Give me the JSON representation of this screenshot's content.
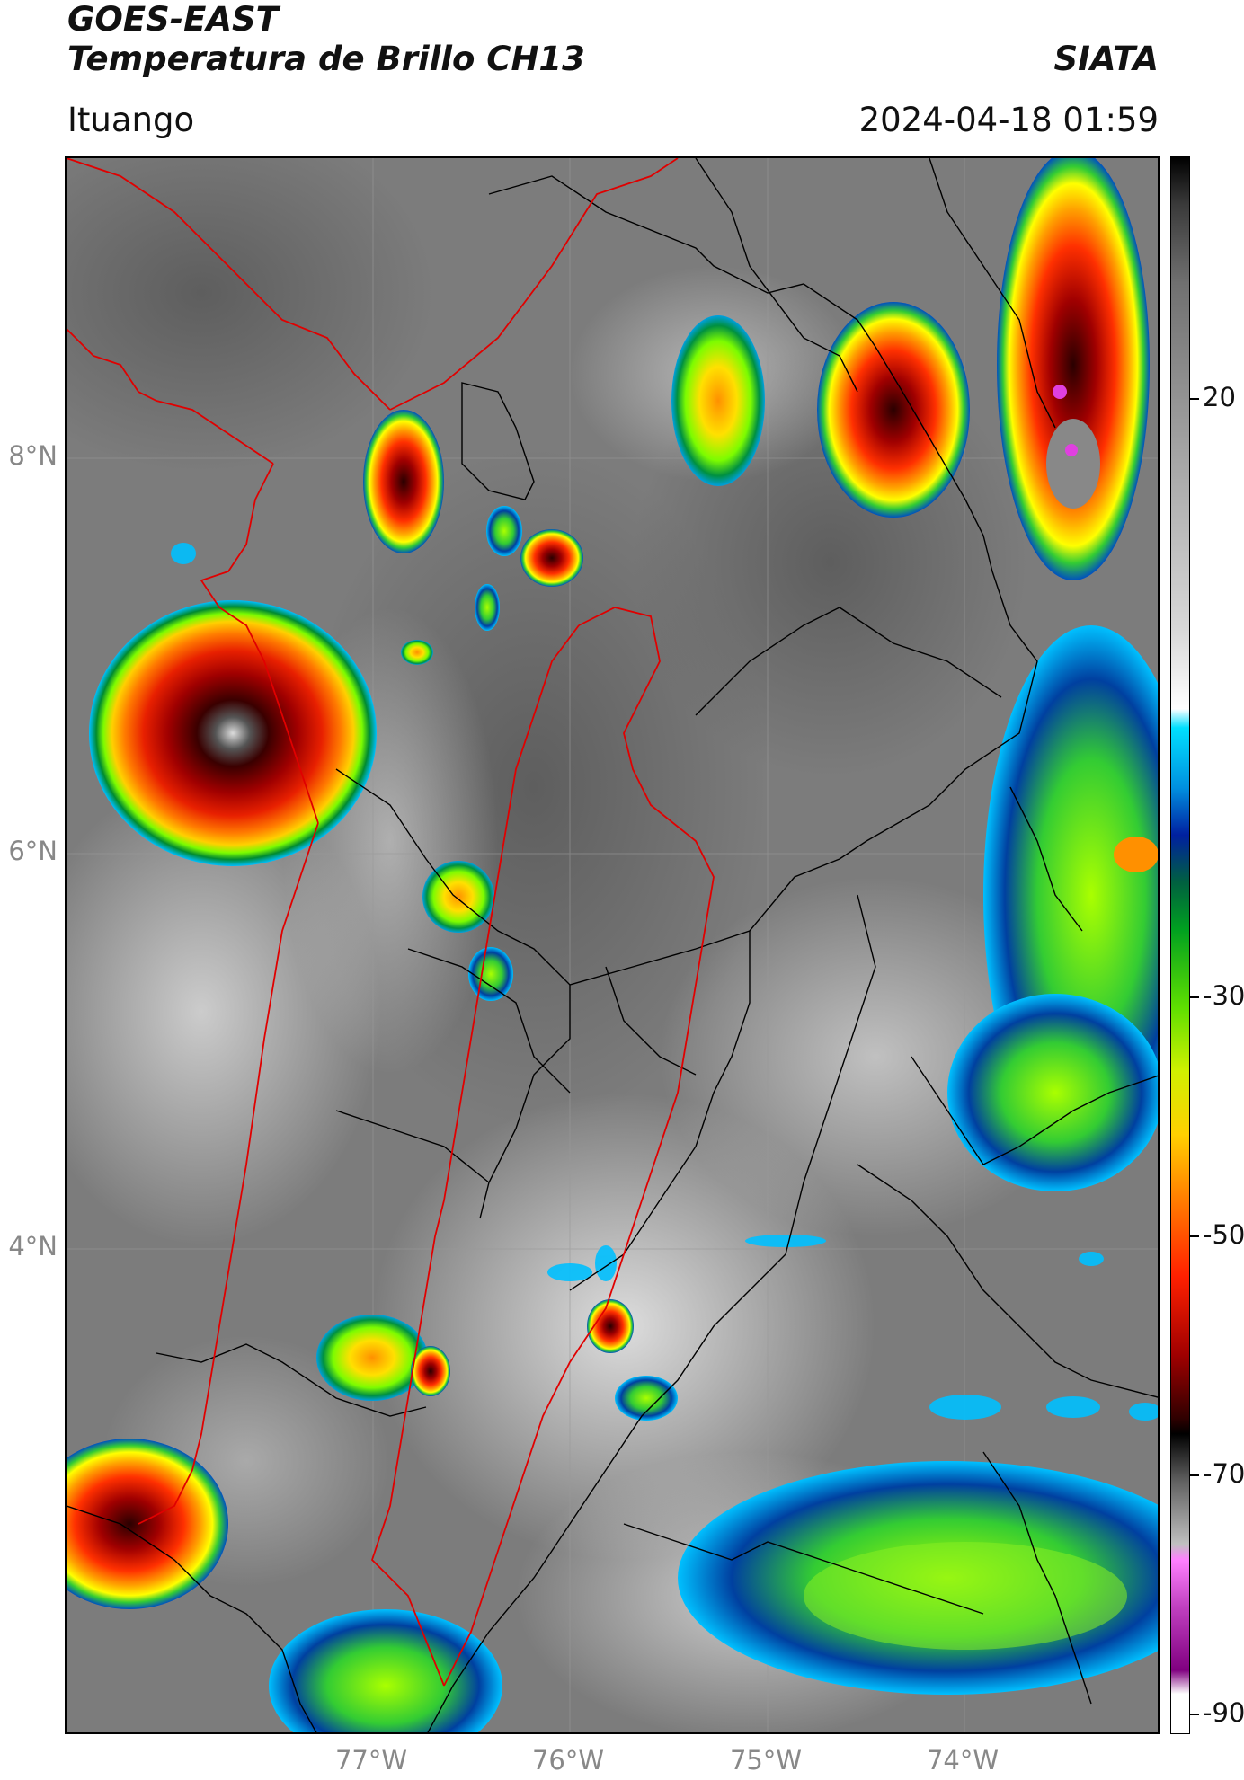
{
  "header": {
    "satellite": "GOES-EAST",
    "product": "Temperatura de Brillo CH13",
    "agency": "SIATA",
    "region": "Ituango",
    "timestamp": "2024-04-18 01:59"
  },
  "map": {
    "lat_labels": [
      "8°N",
      "6°N",
      "4°N"
    ],
    "lon_labels": [
      "77°W",
      "76°W",
      "75°W",
      "74°W"
    ]
  },
  "colorbar": {
    "labels": [
      "20",
      "-30",
      "-50",
      "-70",
      "-90"
    ],
    "colors": [
      "#ffffff",
      "#c040c0",
      "#000000",
      "#8b0000",
      "#ff2000",
      "#ffa500",
      "#ffff00",
      "#7cfc00",
      "#008000",
      "#00008b",
      "#00bfff",
      "#ffffff",
      "#808080",
      "#000000"
    ]
  }
}
